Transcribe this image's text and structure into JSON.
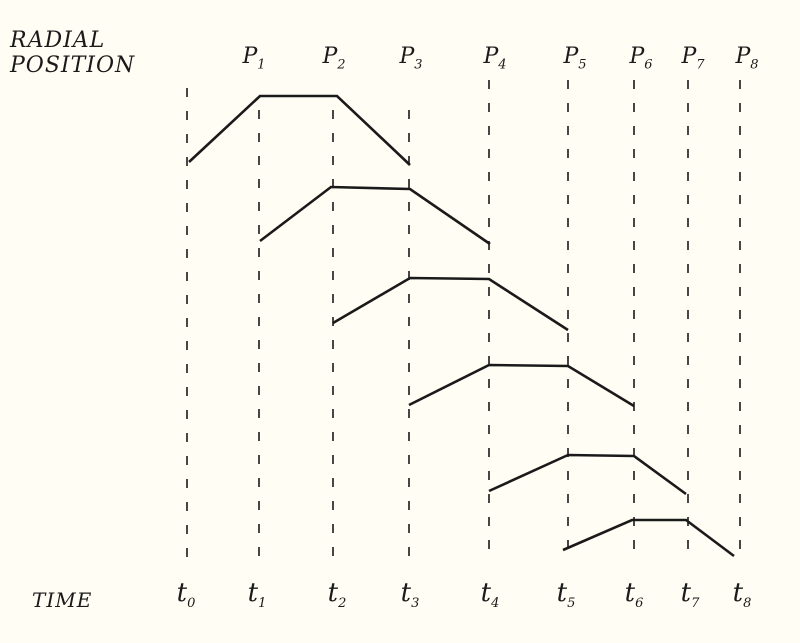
{
  "y_axis_label": [
    "RADIAL",
    "POSITION"
  ],
  "x_axis_label": "TIME",
  "position_labels": [
    {
      "base": "P",
      "sub": "1"
    },
    {
      "base": "P",
      "sub": "2"
    },
    {
      "base": "P",
      "sub": "3"
    },
    {
      "base": "P",
      "sub": "4"
    },
    {
      "base": "P",
      "sub": "5"
    },
    {
      "base": "P",
      "sub": "6"
    },
    {
      "base": "P",
      "sub": "7"
    },
    {
      "base": "P",
      "sub": "8"
    }
  ],
  "time_labels": [
    {
      "base": "t",
      "sub": "0"
    },
    {
      "base": "t",
      "sub": "1"
    },
    {
      "base": "t",
      "sub": "2"
    },
    {
      "base": "t",
      "sub": "3"
    },
    {
      "base": "t",
      "sub": "4"
    },
    {
      "base": "t",
      "sub": "5"
    },
    {
      "base": "t",
      "sub": "6"
    },
    {
      "base": "t",
      "sub": "7"
    },
    {
      "base": "t",
      "sub": "8"
    }
  ],
  "colors": {
    "ink": "#1a1a1a",
    "paper": "#fffdf4"
  }
}
